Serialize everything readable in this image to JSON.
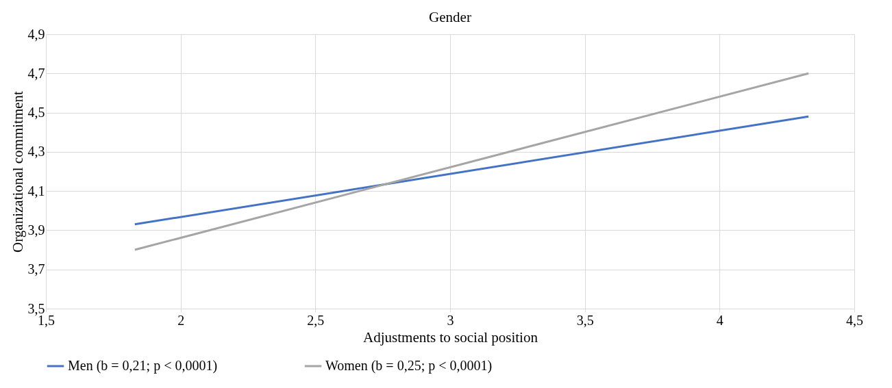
{
  "chart_data": {
    "type": "line",
    "title": "Gender",
    "xlabel": "Adjustments to social position",
    "ylabel": "Organizational commitment",
    "series": [
      {
        "name": "Men (b = 0,21; p < 0,0001)",
        "color": "#4472c4",
        "values": [
          3.93,
          4.48
        ]
      },
      {
        "name": "Women (b = 0,25; p < 0,0001)",
        "color": "#a5a5a5",
        "values": [
          3.8,
          4.7
        ]
      }
    ],
    "x": [
      1.83,
      4.33
    ],
    "xlim": [
      1.5,
      4.5
    ],
    "xticks": [
      {
        "value": 1.5,
        "label": "1,5"
      },
      2,
      {
        "value": 2.5,
        "label": "2,5"
      },
      3,
      {
        "value": 3.5,
        "label": "3,5"
      },
      4,
      {
        "value": 4.5,
        "label": "4,5"
      }
    ],
    "ylim": [
      3.5,
      4.9
    ],
    "yticks": [
      {
        "value": 3.5,
        "label": "3,5"
      },
      {
        "value": 3.7,
        "label": "3,7"
      },
      {
        "value": 3.9,
        "label": "3,9"
      },
      {
        "value": 4.1,
        "label": "4,1"
      },
      {
        "value": 4.3,
        "label": "4,3"
      },
      {
        "value": 4.5,
        "label": "4,5"
      },
      {
        "value": 4.7,
        "label": "4,7"
      },
      {
        "value": 4.9,
        "label": "4,9"
      }
    ],
    "grid": true,
    "legend": "bottom",
    "marker": "none",
    "line_style": "solid"
  }
}
